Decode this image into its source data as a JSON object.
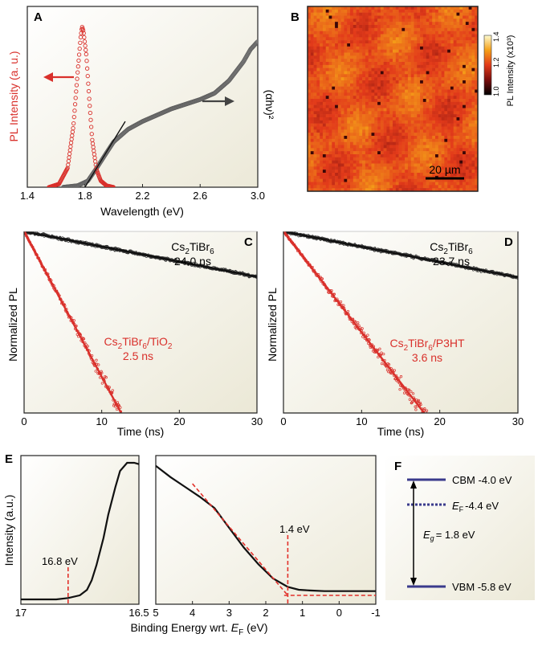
{
  "colors": {
    "pl_red": "#d9302b",
    "absorb_gray": "#6e6e6e",
    "fit_black": "#111111",
    "dashed_red": "#e2302a",
    "band_blue": "#3a3a8c",
    "panel_bg_light": "#fbfaf3",
    "panel_bg_dark": "#ece9d8"
  },
  "chart_data": [
    {
      "panel": "A",
      "type": "line",
      "xlabel": "Wavelength (eV)",
      "ylabel_left": "PL Intensity (a. u.)",
      "ylabel_right": "(αhν)²",
      "xlim": [
        1.4,
        3.0
      ],
      "x_ticks": [
        "1.4",
        "1.8",
        "2.2",
        "2.6",
        "3.0"
      ],
      "series": [
        {
          "kind": "pl",
          "x": [
            1.55,
            1.62,
            1.68,
            1.72,
            1.75,
            1.77,
            1.78,
            1.79,
            1.81,
            1.83,
            1.85,
            1.88,
            1.91,
            1.95,
            2.0
          ],
          "y": [
            0.0,
            0.02,
            0.12,
            0.38,
            0.72,
            0.93,
            1.0,
            0.97,
            0.82,
            0.55,
            0.3,
            0.11,
            0.04,
            0.01,
            0.0
          ]
        },
        {
          "kind": "absorption",
          "x": [
            1.65,
            1.75,
            1.82,
            1.88,
            1.95,
            2.0,
            2.1,
            2.2,
            2.3,
            2.4,
            2.5,
            2.6,
            2.7,
            2.8,
            2.9,
            2.95,
            3.0
          ],
          "y": [
            0.0,
            0.01,
            0.04,
            0.12,
            0.22,
            0.29,
            0.37,
            0.42,
            0.46,
            0.5,
            0.53,
            0.56,
            0.6,
            0.68,
            0.8,
            0.88,
            0.93
          ]
        },
        {
          "kind": "tauc_fit",
          "x": [
            1.8,
            2.08
          ],
          "y": [
            0.0,
            0.42
          ]
        }
      ]
    },
    {
      "panel": "B",
      "type": "heatmap",
      "colorbar_label": "PL Intensity (x10³)",
      "colorbar_ticks": [
        "1.0",
        "1.2",
        "1.4"
      ],
      "clim": [
        1.0,
        1.4
      ],
      "scale_bar": "20 µm"
    },
    {
      "panel": "C",
      "type": "scatter",
      "xlabel": "Time (ns)",
      "ylabel": "Normalized PL",
      "xlim": [
        0,
        30
      ],
      "x_ticks": [
        "0",
        "10",
        "20",
        "30"
      ],
      "series": [
        {
          "name": "Cs₂TiBr₆",
          "lifetime": "24.0 ns",
          "tau": 24.0
        },
        {
          "name": "Cs₂TiBr₆/TiO₂",
          "lifetime": "2.5 ns",
          "tau": 2.5
        }
      ]
    },
    {
      "panel": "D",
      "type": "scatter",
      "xlabel": "Time (ns)",
      "ylabel": "Normalized PL",
      "xlim": [
        0,
        30
      ],
      "x_ticks": [
        "0",
        "10",
        "20",
        "30"
      ],
      "series": [
        {
          "name": "Cs₂TiBr₆",
          "lifetime": "23.7 ns",
          "tau": 23.7
        },
        {
          "name": "Cs₂TiBr₆/P3HT",
          "lifetime": "3.6 ns",
          "tau": 3.6
        }
      ]
    },
    {
      "panel": "E",
      "type": "line",
      "xlabel": "Binding Energy wrt. E_F (eV)",
      "ylabel": "Intensity (a.u.)",
      "left": {
        "xlim": [
          17,
          16.5
        ],
        "x_ticks": [
          "17",
          "16.5"
        ],
        "x": [
          17.0,
          16.9,
          16.85,
          16.8,
          16.75,
          16.72,
          16.7,
          16.68,
          16.65,
          16.63,
          16.6,
          16.58,
          16.55,
          16.52,
          16.5
        ],
        "y": [
          0.0,
          0.0,
          0.0,
          0.01,
          0.03,
          0.07,
          0.14,
          0.25,
          0.45,
          0.62,
          0.82,
          0.94,
          1.0,
          1.0,
          0.99
        ],
        "onset": 16.8,
        "onset_label": "16.8 eV"
      },
      "right": {
        "xlim": [
          5,
          -1
        ],
        "x_ticks": [
          "5",
          "4",
          "3",
          "2",
          "1",
          "0",
          "-1"
        ],
        "x": [
          5.0,
          4.6,
          4.2,
          3.8,
          3.4,
          3.0,
          2.6,
          2.2,
          1.8,
          1.4,
          1.1,
          0.8,
          0.4,
          0.0,
          -0.5,
          -1.0
        ],
        "y": [
          0.92,
          0.84,
          0.77,
          0.7,
          0.62,
          0.48,
          0.34,
          0.22,
          0.12,
          0.06,
          0.04,
          0.035,
          0.03,
          0.03,
          0.03,
          0.03
        ],
        "onset": 1.4,
        "onset_label": "1.4 eV"
      }
    },
    {
      "panel": "F",
      "type": "diagram",
      "levels": [
        {
          "name": "CBM",
          "value": -4.0,
          "label": "CBM -4.0 eV",
          "style": "solid"
        },
        {
          "name": "EF",
          "value": -4.4,
          "label": "-4.4 eV",
          "sub": "F",
          "style": "dotted"
        },
        {
          "name": "VBM",
          "value": -5.8,
          "label": "VBM -5.8 eV",
          "style": "solid"
        }
      ],
      "gap_label": "= 1.8 eV"
    }
  ],
  "panel_labels": [
    "A",
    "B",
    "C",
    "D",
    "E",
    "F"
  ]
}
